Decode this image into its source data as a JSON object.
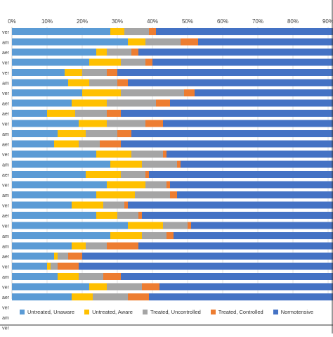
{
  "chart_data": {
    "type": "bar",
    "orientation": "horizontal",
    "stacked": true,
    "percent": true,
    "title": "",
    "xlabel": "",
    "ylabel": "",
    "xlim": [
      0,
      100
    ],
    "x_ticks": [
      "0%",
      "10%",
      "20%",
      "30%",
      "40%",
      "50%",
      "60%",
      "70%",
      "80%",
      "90%"
    ],
    "grid": true,
    "legend_position": "bottom",
    "categories": [
      "ver",
      "am",
      "aer",
      "ver",
      "ver",
      "am",
      "ver",
      "aer",
      "aer",
      "ver",
      "am",
      "aer",
      "ver",
      "am",
      "aer",
      "ver",
      "am",
      "ver",
      "aer",
      "ver",
      "am",
      "am",
      "aer",
      "ver",
      "am",
      "ver",
      "aer",
      "ver",
      "am",
      "ver"
    ],
    "series": [
      {
        "name": "Untreated, Unaware",
        "color": "#5B9BD5",
        "values": [
          28,
          33,
          24,
          22,
          15,
          16,
          20,
          17,
          10,
          19,
          13,
          12,
          24,
          28,
          21,
          27,
          24,
          17,
          24,
          33,
          28,
          17,
          12,
          10,
          13,
          22,
          17,
          0,
          0,
          0
        ]
      },
      {
        "name": "Untreated, Aware",
        "color": "#FFC000",
        "values": [
          4,
          5,
          3,
          9,
          5,
          6,
          11,
          10,
          8,
          8,
          8,
          7,
          10,
          9,
          10,
          11,
          11,
          9,
          6,
          10,
          9,
          4,
          1,
          1,
          6,
          5,
          6,
          0,
          0,
          0
        ]
      },
      {
        "name": "Treated, Uncontrolled",
        "color": "#A5A5A5",
        "values": [
          7,
          10,
          7,
          7,
          7,
          8,
          18,
          14,
          9,
          11,
          9,
          6,
          9,
          10,
          7,
          6,
          10,
          6,
          6,
          7,
          7,
          6,
          3,
          2,
          7,
          10,
          10,
          0,
          0,
          0
        ]
      },
      {
        "name": "Treated, Controlled",
        "color": "#ED7D31",
        "values": [
          2,
          5,
          2,
          2,
          3,
          3,
          3,
          4,
          4,
          5,
          4,
          6,
          1,
          1,
          1,
          1,
          2,
          1,
          1,
          1,
          2,
          9,
          4,
          6,
          5,
          5,
          6,
          0,
          0,
          0
        ]
      },
      {
        "name": "Normotensive",
        "color": "#4472C4",
        "values": [
          59,
          47,
          64,
          60,
          70,
          67,
          48,
          55,
          69,
          57,
          66,
          69,
          56,
          52,
          61,
          55,
          53,
          67,
          63,
          49,
          54,
          64,
          80,
          81,
          69,
          58,
          61,
          0,
          0,
          0
        ]
      }
    ]
  }
}
